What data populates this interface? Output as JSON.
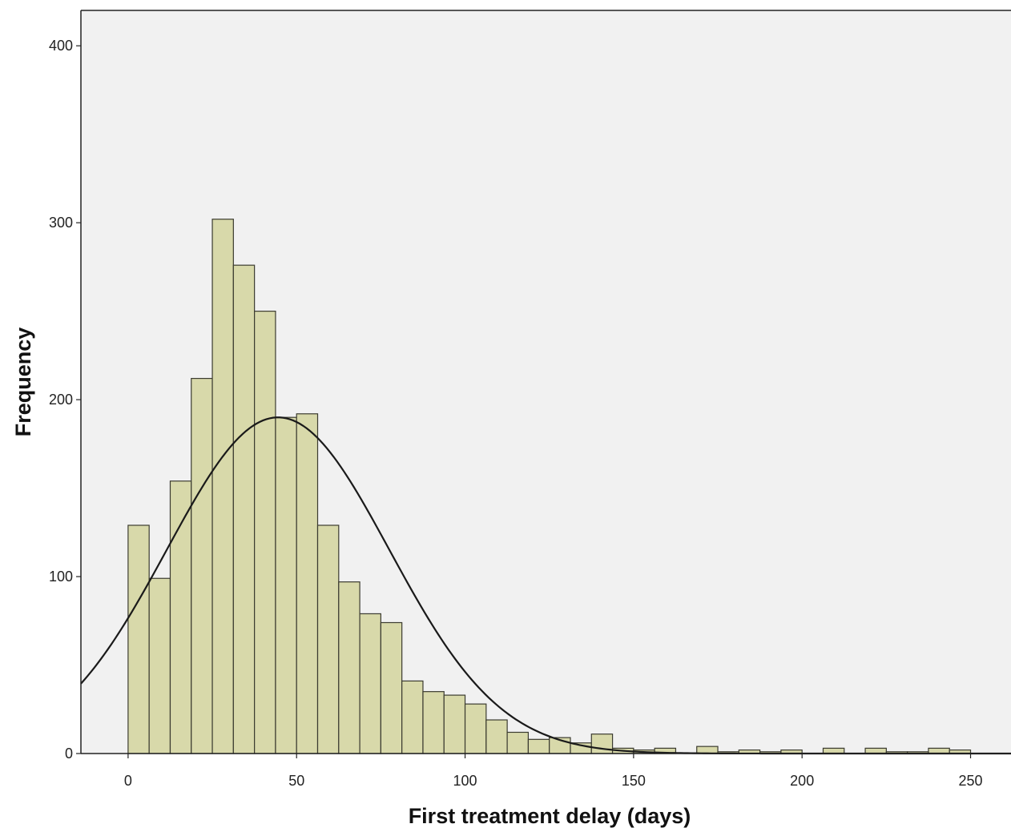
{
  "chart_data": {
    "type": "bar",
    "subtype": "histogram",
    "title": "",
    "xlabel": "First treatment delay (days)",
    "ylabel": "Frequency",
    "xlim": [
      -14,
      262
    ],
    "ylim": [
      0,
      420
    ],
    "x_ticks": [
      0,
      50,
      100,
      150,
      200,
      250
    ],
    "y_ticks": [
      0,
      100,
      200,
      300,
      400
    ],
    "grid": false,
    "bin_width": 6.25,
    "bins": [
      {
        "start": 0,
        "value": 129
      },
      {
        "start": 6.25,
        "value": 99
      },
      {
        "start": 12.5,
        "value": 154
      },
      {
        "start": 18.75,
        "value": 212
      },
      {
        "start": 25,
        "value": 302
      },
      {
        "start": 31.25,
        "value": 276
      },
      {
        "start": 37.5,
        "value": 250
      },
      {
        "start": 43.75,
        "value": 190
      },
      {
        "start": 50,
        "value": 192
      },
      {
        "start": 56.25,
        "value": 129
      },
      {
        "start": 62.5,
        "value": 97
      },
      {
        "start": 68.75,
        "value": 79
      },
      {
        "start": 75,
        "value": 74
      },
      {
        "start": 81.25,
        "value": 41
      },
      {
        "start": 87.5,
        "value": 35
      },
      {
        "start": 93.75,
        "value": 33
      },
      {
        "start": 100,
        "value": 28
      },
      {
        "start": 106.25,
        "value": 19
      },
      {
        "start": 112.5,
        "value": 12
      },
      {
        "start": 118.75,
        "value": 8
      },
      {
        "start": 125,
        "value": 9
      },
      {
        "start": 131.25,
        "value": 6
      },
      {
        "start": 137.5,
        "value": 11
      },
      {
        "start": 143.75,
        "value": 3
      },
      {
        "start": 150,
        "value": 2
      },
      {
        "start": 156.25,
        "value": 3
      },
      {
        "start": 162.5,
        "value": 0
      },
      {
        "start": 168.75,
        "value": 4
      },
      {
        "start": 175,
        "value": 1
      },
      {
        "start": 181.25,
        "value": 2
      },
      {
        "start": 187.5,
        "value": 1
      },
      {
        "start": 193.75,
        "value": 2
      },
      {
        "start": 200,
        "value": 0
      },
      {
        "start": 206.25,
        "value": 3
      },
      {
        "start": 212.5,
        "value": 0
      },
      {
        "start": 218.75,
        "value": 3
      },
      {
        "start": 225,
        "value": 1
      },
      {
        "start": 231.25,
        "value": 1
      },
      {
        "start": 237.5,
        "value": 3
      },
      {
        "start": 243.75,
        "value": 2
      }
    ],
    "normal_curve": {
      "mean": 44.5,
      "sd": 33,
      "peak": 190
    },
    "colors": {
      "bar_fill": "#d8d9aa",
      "bar_stroke": "#3b3b30",
      "plot_background": "#f1f1f1",
      "curve": "#1a1a1a"
    }
  }
}
